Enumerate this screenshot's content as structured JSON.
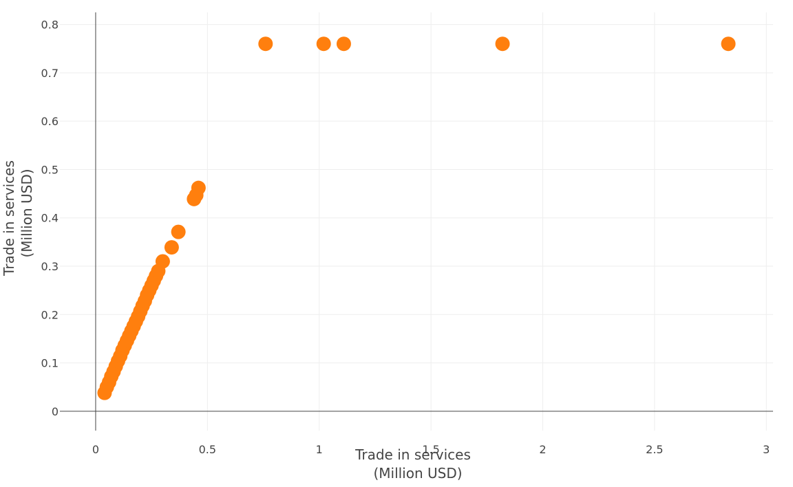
{
  "chart_data": {
    "type": "scatter",
    "title": "",
    "xlabel_lines": [
      "Trade in services",
      "(Million USD)"
    ],
    "ylabel_lines": [
      "Trade in services",
      "(Million USD)"
    ],
    "xlim": [
      -0.16,
      3.03
    ],
    "ylim": [
      -0.04,
      0.825
    ],
    "x_ticks": [
      0,
      0.5,
      1,
      1.5,
      2,
      2.5,
      3
    ],
    "x_tick_labels": [
      "0",
      "0.5",
      "1",
      "1.5",
      "2",
      "2.5",
      "3"
    ],
    "y_ticks": [
      0,
      0.1,
      0.2,
      0.3,
      0.4,
      0.5,
      0.6,
      0.7,
      0.8
    ],
    "y_tick_labels": [
      "0",
      "0.1",
      "0.2",
      "0.3",
      "0.4",
      "0.5",
      "0.6",
      "0.7",
      "0.8"
    ],
    "grid": true,
    "marker_color": "#ff7f0e",
    "points": [
      {
        "x": 0.04,
        "y": 0.038
      },
      {
        "x": 0.05,
        "y": 0.05
      },
      {
        "x": 0.06,
        "y": 0.06
      },
      {
        "x": 0.07,
        "y": 0.072
      },
      {
        "x": 0.08,
        "y": 0.082
      },
      {
        "x": 0.09,
        "y": 0.093
      },
      {
        "x": 0.1,
        "y": 0.104
      },
      {
        "x": 0.11,
        "y": 0.114
      },
      {
        "x": 0.12,
        "y": 0.126
      },
      {
        "x": 0.13,
        "y": 0.136
      },
      {
        "x": 0.14,
        "y": 0.146
      },
      {
        "x": 0.15,
        "y": 0.156
      },
      {
        "x": 0.16,
        "y": 0.166
      },
      {
        "x": 0.17,
        "y": 0.176
      },
      {
        "x": 0.18,
        "y": 0.186
      },
      {
        "x": 0.19,
        "y": 0.196
      },
      {
        "x": 0.2,
        "y": 0.207
      },
      {
        "x": 0.21,
        "y": 0.218
      },
      {
        "x": 0.22,
        "y": 0.228
      },
      {
        "x": 0.23,
        "y": 0.24
      },
      {
        "x": 0.24,
        "y": 0.25
      },
      {
        "x": 0.25,
        "y": 0.26
      },
      {
        "x": 0.26,
        "y": 0.27
      },
      {
        "x": 0.27,
        "y": 0.28
      },
      {
        "x": 0.28,
        "y": 0.29
      },
      {
        "x": 0.3,
        "y": 0.31
      },
      {
        "x": 0.34,
        "y": 0.339
      },
      {
        "x": 0.37,
        "y": 0.371
      },
      {
        "x": 0.44,
        "y": 0.439
      },
      {
        "x": 0.45,
        "y": 0.447
      },
      {
        "x": 0.46,
        "y": 0.462
      },
      {
        "x": 0.76,
        "y": 0.76
      },
      {
        "x": 1.02,
        "y": 0.76
      },
      {
        "x": 1.11,
        "y": 0.76
      },
      {
        "x": 1.82,
        "y": 0.76
      },
      {
        "x": 2.83,
        "y": 0.76
      }
    ]
  }
}
